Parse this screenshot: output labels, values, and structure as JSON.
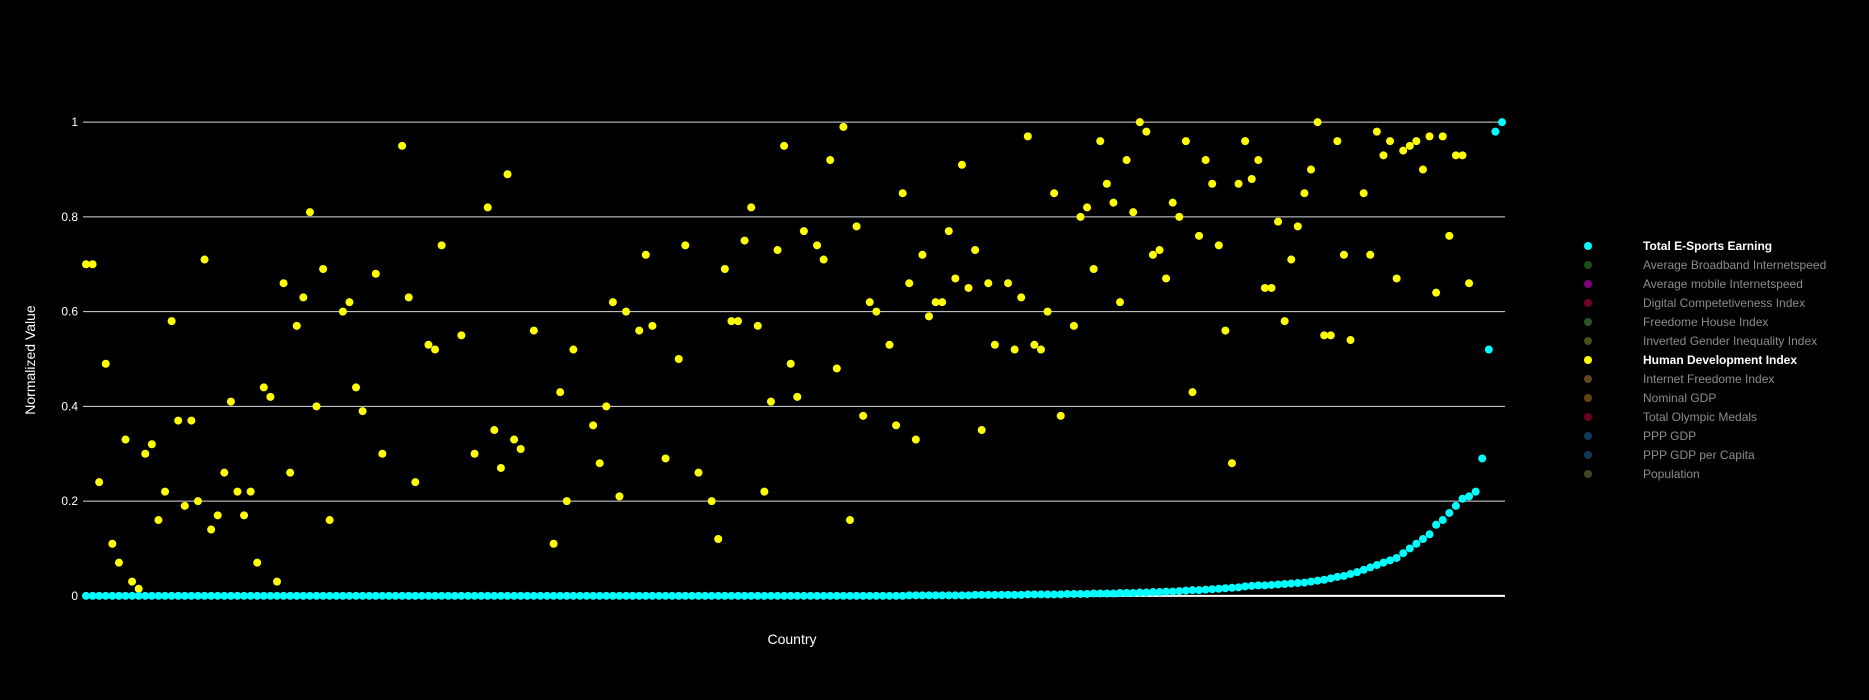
{
  "chart_data": {
    "type": "scatter",
    "xlabel": "Country",
    "ylabel": "Normalized Value",
    "ylim": [
      -0.07,
      1.07
    ],
    "yticks": [
      0,
      0.2,
      0.4,
      0.6,
      0.8,
      1
    ],
    "ytick_labels": [
      "0",
      "0.2",
      "0.4",
      "0.6",
      "0.8",
      "1"
    ],
    "grid": true,
    "legend_position": "right",
    "series": [
      {
        "name": "Total E-Sports Earning",
        "color": "#00ffff",
        "visible": true,
        "values": [
          0,
          0,
          0,
          0,
          0,
          0,
          0,
          0,
          0,
          0,
          0,
          0,
          0,
          0,
          0,
          0,
          0,
          0,
          0,
          0,
          0,
          0,
          0,
          0,
          0,
          0,
          0,
          0,
          0,
          0,
          0,
          0,
          0,
          0,
          0,
          0,
          0,
          0,
          0,
          0,
          0,
          0,
          0,
          0,
          0,
          0,
          0,
          0,
          0,
          0,
          0,
          0,
          0,
          0,
          0,
          0,
          0,
          0,
          0,
          0,
          0,
          0,
          0,
          0,
          0,
          0,
          0,
          0,
          0,
          0,
          0,
          0,
          0,
          0,
          0,
          0,
          0,
          0,
          0,
          0,
          0,
          0,
          0,
          0,
          0,
          0,
          0,
          0,
          0,
          0,
          0,
          0,
          0,
          0,
          0,
          0,
          0,
          0,
          0,
          0,
          0,
          0,
          0,
          0,
          0,
          0,
          0,
          0,
          0,
          0,
          0,
          0,
          0,
          0,
          0,
          0,
          0,
          0,
          0,
          0,
          0,
          0,
          0,
          0,
          0,
          0.001,
          0.001,
          0.001,
          0.001,
          0.001,
          0.001,
          0.001,
          0.001,
          0.001,
          0.001,
          0.002,
          0.002,
          0.002,
          0.002,
          0.002,
          0.002,
          0.002,
          0.002,
          0.003,
          0.003,
          0.003,
          0.003,
          0.003,
          0.003,
          0.004,
          0.004,
          0.004,
          0.004,
          0.005,
          0.005,
          0.005,
          0.005,
          0.006,
          0.006,
          0.006,
          0.007,
          0.007,
          0.008,
          0.008,
          0.009,
          0.009,
          0.01,
          0.011,
          0.012,
          0.012,
          0.013,
          0.014,
          0.015,
          0.016,
          0.017,
          0.018,
          0.02,
          0.021,
          0.022,
          0.022,
          0.023,
          0.024,
          0.025,
          0.026,
          0.027,
          0.028,
          0.03,
          0.032,
          0.034,
          0.037,
          0.04,
          0.042,
          0.046,
          0.05,
          0.055,
          0.06,
          0.065,
          0.07,
          0.075,
          0.08,
          0.09,
          0.1,
          0.11,
          0.12,
          0.13,
          0.15,
          0.16,
          0.175,
          0.19,
          0.205,
          0.21,
          0.22,
          0.29,
          0.52,
          0.98,
          1.0
        ]
      },
      {
        "name": "Average Broadband Internetspeed",
        "color": "#2ca02c",
        "visible": false
      },
      {
        "name": "Average mobile Internetspeed",
        "color": "#ff00ff",
        "visible": false
      },
      {
        "name": "Digital Competetiveness Index",
        "color": "#e5004c",
        "visible": false
      },
      {
        "name": "Freedome House Index",
        "color": "#55aa55",
        "visible": false
      },
      {
        "name": "Inverted Gender Inequality Index",
        "color": "#8ea22e",
        "visible": false
      },
      {
        "name": "Human Development Index",
        "color": "#ffff00",
        "visible": true,
        "values": [
          0.7,
          0.7,
          0.24,
          0.49,
          0.11,
          0.07,
          0.33,
          0.03,
          0.015,
          0.3,
          0.32,
          0.16,
          0.22,
          0.58,
          0.37,
          0.19,
          0.37,
          0.2,
          0.71,
          0.14,
          0.17,
          0.26,
          0.41,
          0.22,
          0.17,
          0.22,
          0.07,
          0.44,
          0.42,
          0.03,
          0.66,
          0.26,
          0.57,
          0.63,
          0.81,
          0.4,
          0.69,
          0.16,
          null,
          0.6,
          0.62,
          0.44,
          0.39,
          null,
          0.68,
          0.3,
          null,
          null,
          0.95,
          0.63,
          0.24,
          null,
          0.53,
          0.52,
          0.74,
          null,
          null,
          0.55,
          null,
          0.3,
          null,
          0.82,
          0.35,
          0.27,
          0.89,
          0.33,
          0.31,
          null,
          0.56,
          null,
          null,
          0.11,
          0.43,
          0.2,
          0.52,
          null,
          null,
          0.36,
          0.28,
          0.4,
          0.62,
          0.21,
          0.6,
          null,
          0.56,
          0.72,
          0.57,
          null,
          0.29,
          null,
          0.5,
          0.74,
          null,
          0.26,
          null,
          0.2,
          0.12,
          0.69,
          0.58,
          0.58,
          0.75,
          0.82,
          0.57,
          0.22,
          0.41,
          0.73,
          0.95,
          0.49,
          0.42,
          0.77,
          null,
          0.74,
          0.71,
          0.92,
          0.48,
          0.99,
          0.16,
          0.78,
          0.38,
          0.62,
          0.6,
          null,
          0.53,
          0.36,
          0.85,
          0.66,
          0.33,
          0.72,
          0.59,
          0.62,
          0.62,
          0.77,
          0.67,
          0.91,
          0.65,
          0.73,
          0.35,
          0.66,
          0.53,
          null,
          0.66,
          0.52,
          0.63,
          0.97,
          0.53,
          0.52,
          0.6,
          0.85,
          0.38,
          null,
          0.57,
          0.8,
          0.82,
          0.69,
          0.96,
          0.87,
          0.83,
          0.62,
          0.92,
          0.81,
          1.0,
          0.98,
          0.72,
          0.73,
          0.67,
          0.83,
          0.8,
          0.96,
          0.43,
          0.76,
          0.92,
          0.87,
          0.74,
          0.56,
          0.28,
          0.87,
          0.96,
          0.88,
          0.92,
          0.65,
          0.65,
          0.79,
          0.58,
          0.71,
          0.78,
          0.85,
          0.9,
          1.0,
          0.55,
          0.55,
          0.96,
          0.72,
          0.54,
          null,
          0.85,
          0.72,
          0.98,
          0.93,
          0.96,
          0.67,
          0.94,
          0.95,
          0.96,
          0.9,
          0.97,
          0.64,
          0.97,
          0.76,
          0.93,
          0.93,
          0.66
        ]
      },
      {
        "name": "Internet Freedome Index",
        "color": "#bd8c3c",
        "visible": false
      },
      {
        "name": "Nominal GDP",
        "color": "#c8861f",
        "visible": false
      },
      {
        "name": "Total Olympic Medals",
        "color": "#e00040",
        "visible": false
      },
      {
        "name": "PPP GDP",
        "color": "#1f77b4",
        "visible": false
      },
      {
        "name": "PPP GDP per Capita",
        "color": "#1f77b4",
        "visible": false
      },
      {
        "name": "Population",
        "color": "#7f8f3f",
        "visible": false
      }
    ]
  }
}
